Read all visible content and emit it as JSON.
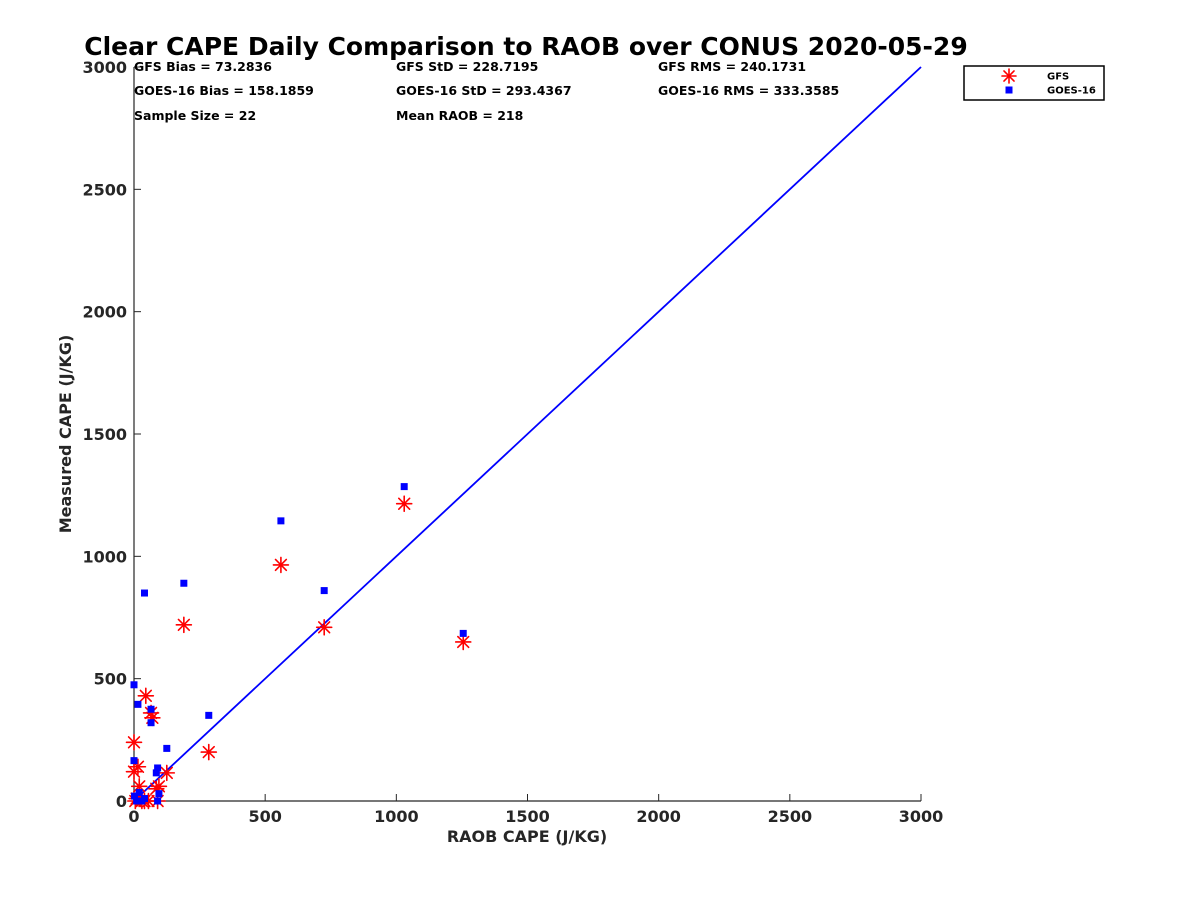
{
  "chart_data": {
    "type": "scatter",
    "title": "Clear CAPE Daily Comparison to RAOB over CONUS 2020-05-29",
    "xlabel": "RAOB CAPE (J/KG)",
    "ylabel": "Measured CAPE (J/KG)",
    "xlim": [
      0,
      3000
    ],
    "ylim": [
      0,
      3000
    ],
    "xticks": [
      0,
      500,
      1000,
      1500,
      2000,
      2500,
      3000
    ],
    "yticks": [
      0,
      500,
      1000,
      1500,
      2000,
      2500,
      3000
    ],
    "grid": false,
    "legend_position": "top-right outside",
    "reference_line": {
      "type": "1:1",
      "x": [
        0,
        3000
      ],
      "y": [
        0,
        3000
      ],
      "color": "#0000ff"
    },
    "stats": [
      [
        "GFS Bias = 73.2836",
        "GFS StD = 228.7195",
        "GFS RMS = 240.1731"
      ],
      [
        "GOES-16 Bias = 158.1859",
        "GOES-16 StD = 293.4367",
        "GOES-16 RMS = 333.3585"
      ],
      [
        "Sample Size = 22",
        "Mean RAOB = 218",
        ""
      ]
    ],
    "series": [
      {
        "name": "GFS",
        "marker": "asterisk",
        "color": "#ff0000",
        "points": [
          [
            0,
            240
          ],
          [
            0,
            120
          ],
          [
            5,
            0
          ],
          [
            10,
            10
          ],
          [
            15,
            140
          ],
          [
            20,
            60
          ],
          [
            30,
            0
          ],
          [
            45,
            430
          ],
          [
            65,
            360
          ],
          [
            70,
            340
          ],
          [
            85,
            50
          ],
          [
            90,
            0
          ],
          [
            125,
            115
          ],
          [
            190,
            720
          ],
          [
            285,
            200
          ],
          [
            560,
            965
          ],
          [
            725,
            710
          ],
          [
            1030,
            1215
          ],
          [
            1255,
            650
          ],
          [
            40,
            0
          ],
          [
            55,
            0
          ],
          [
            95,
            60
          ]
        ]
      },
      {
        "name": "GOES-16",
        "marker": "square",
        "color": "#0000ff",
        "points": [
          [
            0,
            475
          ],
          [
            0,
            165
          ],
          [
            2,
            20
          ],
          [
            10,
            0
          ],
          [
            15,
            395
          ],
          [
            20,
            35
          ],
          [
            30,
            0
          ],
          [
            40,
            850
          ],
          [
            65,
            375
          ],
          [
            65,
            320
          ],
          [
            85,
            115
          ],
          [
            90,
            135
          ],
          [
            90,
            0
          ],
          [
            125,
            215
          ],
          [
            190,
            890
          ],
          [
            285,
            350
          ],
          [
            560,
            1145
          ],
          [
            725,
            860
          ],
          [
            1030,
            1285
          ],
          [
            1255,
            685
          ],
          [
            40,
            10
          ],
          [
            95,
            30
          ]
        ]
      }
    ]
  }
}
